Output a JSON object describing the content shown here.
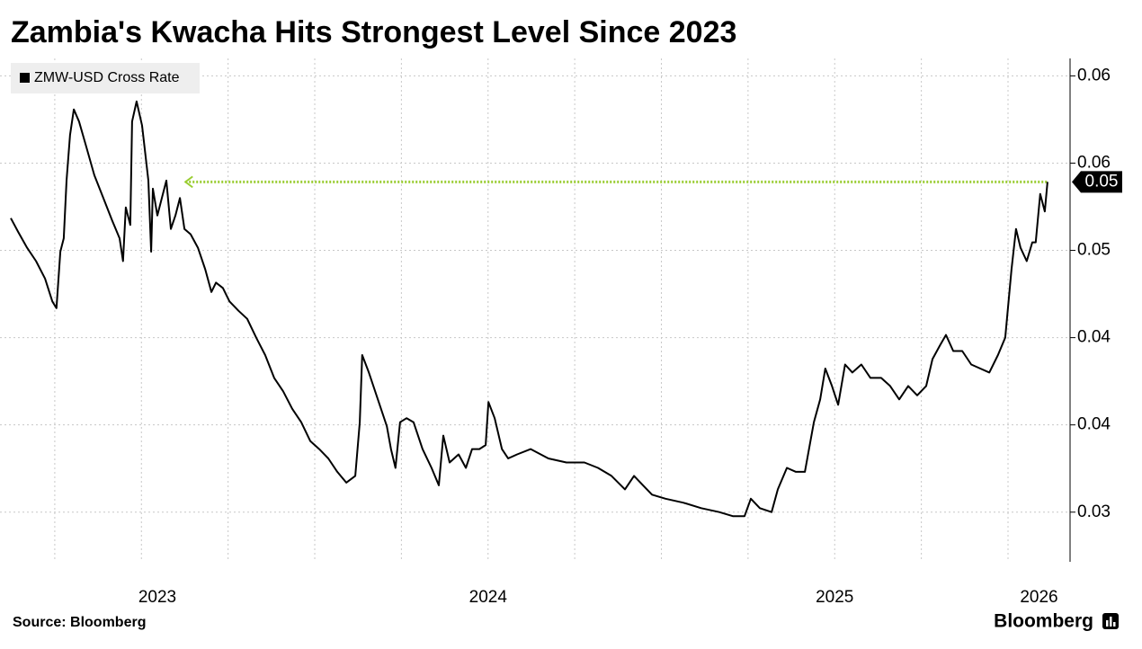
{
  "chart_data": {
    "type": "line",
    "title": "Zambia's Kwacha Hits Strongest Level Since 2023",
    "source": "Source: Bloomberg",
    "brand": "Bloomberg",
    "x": [
      2023.123,
      2023.144,
      2023.17,
      2023.196,
      2023.222,
      2023.243,
      2023.255,
      2023.266,
      2023.276,
      2023.284,
      2023.294,
      2023.305,
      2023.32,
      2023.339,
      2023.364,
      2023.39,
      2023.416,
      2023.437,
      2023.447,
      2023.455,
      2023.468,
      2023.473,
      2023.486,
      2023.502,
      2023.52,
      2023.528,
      2023.533,
      2023.546,
      2023.559,
      2023.572,
      2023.585,
      2023.598,
      2023.611,
      2023.624,
      2023.642,
      2023.663,
      2023.684,
      2023.702,
      2023.715,
      2023.735,
      2023.754,
      2023.78,
      2023.805,
      2023.831,
      2023.857,
      2023.883,
      2023.909,
      2023.935,
      2023.961,
      2023.987,
      2024.013,
      2024.039,
      2024.065,
      2024.091,
      2024.117,
      2024.13,
      2024.137,
      2024.156,
      2024.182,
      2024.208,
      2024.22,
      2024.233,
      2024.246,
      2024.265,
      2024.285,
      2024.311,
      2024.337,
      2024.358,
      2024.371,
      2024.389,
      2024.415,
      2024.436,
      2024.454,
      2024.475,
      2024.493,
      2024.501,
      2024.519,
      2024.54,
      2024.558,
      2024.584,
      2024.623,
      2024.674,
      2024.726,
      2024.778,
      2024.817,
      2024.856,
      2024.895,
      2024.921,
      2024.947,
      2024.973,
      2025.012,
      2025.064,
      2025.115,
      2025.167,
      2025.206,
      2025.24,
      2025.258,
      2025.284,
      2025.318,
      2025.336,
      2025.362,
      2025.388,
      2025.414,
      2025.44,
      2025.458,
      2025.473,
      2025.492,
      2025.51,
      2025.53,
      2025.551,
      2025.577,
      2025.603,
      2025.634,
      2025.66,
      2025.686,
      2025.712,
      2025.738,
      2025.764,
      2025.782,
      2025.803,
      2025.821,
      2025.842,
      2025.868,
      2025.894,
      2025.92,
      2025.946,
      2025.971,
      2025.992,
      2026.01,
      2026.023,
      2026.036,
      2026.054,
      2026.07,
      2026.08,
      2026.093,
      2026.106,
      2026.114
    ],
    "series": [
      {
        "name": "ZMW-USD Cross Rate",
        "color": "#000000",
        "values": [
          0.0519,
          0.0509,
          0.0497,
          0.0487,
          0.0474,
          0.0457,
          0.0452,
          0.0494,
          0.0504,
          0.0547,
          0.0581,
          0.06,
          0.0591,
          0.0574,
          0.0551,
          0.0534,
          0.0517,
          0.0504,
          0.0487,
          0.0527,
          0.0514,
          0.0591,
          0.0606,
          0.0588,
          0.0547,
          0.0494,
          0.0541,
          0.0521,
          0.0534,
          0.0547,
          0.0511,
          0.0521,
          0.0534,
          0.0511,
          0.0507,
          0.0497,
          0.0481,
          0.0464,
          0.0471,
          0.0467,
          0.0457,
          0.045,
          0.0444,
          0.043,
          0.0417,
          0.04,
          0.039,
          0.0377,
          0.0367,
          0.0353,
          0.0347,
          0.034,
          0.033,
          0.0322,
          0.0327,
          0.0367,
          0.0417,
          0.0404,
          0.0384,
          0.0364,
          0.0347,
          0.0333,
          0.0367,
          0.037,
          0.0367,
          0.0347,
          0.0333,
          0.032,
          0.0357,
          0.0337,
          0.0343,
          0.0333,
          0.0347,
          0.0347,
          0.035,
          0.0382,
          0.037,
          0.0347,
          0.034,
          0.0343,
          0.0347,
          0.034,
          0.0337,
          0.0337,
          0.0333,
          0.0327,
          0.0317,
          0.0327,
          0.032,
          0.0313,
          0.031,
          0.0307,
          0.0303,
          0.03,
          0.0297,
          0.0297,
          0.031,
          0.0303,
          0.03,
          0.0317,
          0.0333,
          0.033,
          0.033,
          0.0367,
          0.0384,
          0.0407,
          0.0394,
          0.038,
          0.041,
          0.0404,
          0.041,
          0.04,
          0.04,
          0.0394,
          0.0384,
          0.0394,
          0.0387,
          0.0394,
          0.0414,
          0.0424,
          0.0432,
          0.042,
          0.042,
          0.041,
          0.0407,
          0.0404,
          0.0417,
          0.043,
          0.0481,
          0.0511,
          0.0497,
          0.0487,
          0.0501,
          0.0501,
          0.0537,
          0.0524,
          0.0546
        ]
      }
    ],
    "annotations": [
      {
        "text": "0.05",
        "y": 0.0546,
        "x_start": 2023.627,
        "color": "#9acd32"
      }
    ],
    "xlim": [
      2023.092,
      2026.179
    ],
    "xticks": [
      {
        "value": 2023,
        "label": "2023"
      },
      {
        "value": 2024,
        "label": "2024"
      },
      {
        "value": 2025,
        "label": "2025"
      },
      {
        "value": 2026,
        "label": "2026"
      }
    ],
    "ylim": [
      0.0263,
      0.0638
    ],
    "yticks": [
      {
        "value": 0.03,
        "label": "0.03"
      },
      {
        "value": 0.0365,
        "label": "0.04"
      },
      {
        "value": 0.043,
        "label": "0.04"
      },
      {
        "value": 0.0495,
        "label": "0.05"
      },
      {
        "value": 0.056,
        "label": "0.06"
      },
      {
        "value": 0.0625,
        "label": "0.06"
      }
    ],
    "grid": true,
    "legend": "top-left"
  }
}
